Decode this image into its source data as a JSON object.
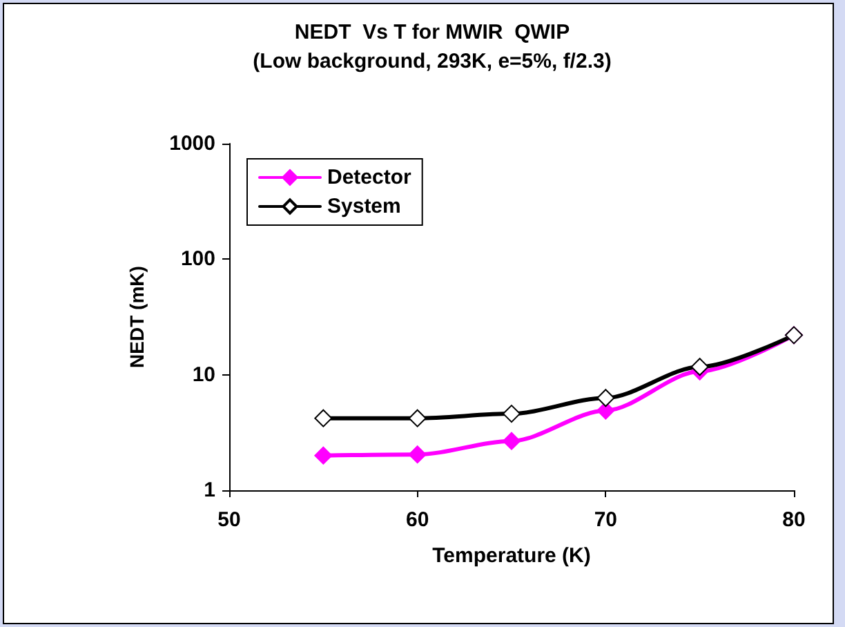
{
  "chart_data": {
    "type": "line",
    "title": "NEDT  Vs T for MWIR  QWIP",
    "subtitle": "(Low background, 293K, e=5%, f/2.3)",
    "xlabel": "Temperature (K)",
    "ylabel": "NEDT (mK)",
    "x": [
      55,
      60,
      65,
      70,
      75,
      80
    ],
    "series": [
      {
        "name": "Detector",
        "color": "#ff00ff",
        "marker": "diamond",
        "values": [
          2.0,
          2.04,
          2.67,
          4.9,
          10.7,
          22
        ]
      },
      {
        "name": "System",
        "color": "#000000",
        "marker": "diamond",
        "values": [
          4.2,
          4.2,
          4.6,
          6.3,
          11.7,
          22
        ]
      }
    ],
    "xlim": [
      50,
      80
    ],
    "xticks": [
      50,
      60,
      70,
      80
    ],
    "ylim": [
      1,
      1000
    ],
    "yticks": [
      1,
      10,
      100,
      1000
    ],
    "log": "y",
    "grid": false,
    "legend": "top left",
    "line_style": "solid"
  }
}
